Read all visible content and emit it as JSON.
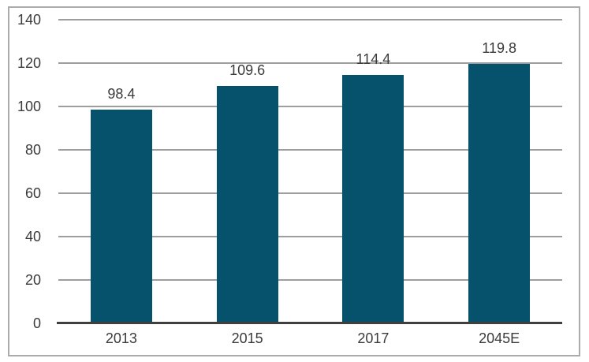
{
  "chart_data": {
    "type": "bar",
    "categories": [
      "2013",
      "2015",
      "2017",
      "2045E"
    ],
    "values": [
      98.4,
      109.6,
      114.4,
      119.8
    ],
    "value_labels": [
      "98.4",
      "109.6",
      "114.4",
      "119.8"
    ],
    "title": "",
    "xlabel": "",
    "ylabel": "",
    "ylim": [
      0,
      140
    ],
    "yticks": [
      0,
      20,
      40,
      60,
      80,
      100,
      120,
      140
    ],
    "grid": "horizontal",
    "legend_position": "none",
    "colors": {
      "bar": "#06516b",
      "gridline": "#9e9e9e",
      "axis_line": "#3f3f3f",
      "frame_border": "#ababab",
      "text": "#3b3b3b",
      "background": "#ffffff"
    }
  }
}
